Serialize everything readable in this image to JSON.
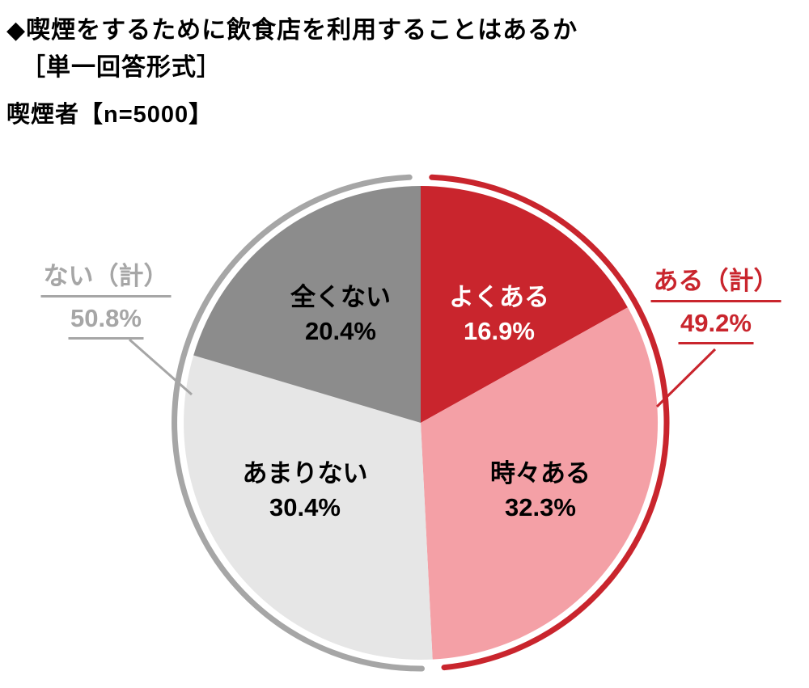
{
  "header": {
    "title": "◆喫煙をするために飲食店を利用することはあるか",
    "format_note": "［単一回答形式］",
    "sample": "喫煙者【n=5000】"
  },
  "chart_data": {
    "type": "pie",
    "title": "喫煙をするために飲食店を利用することはあるか（単一回答形式）",
    "sample_size": 5000,
    "sample_label": "喫煙者【n=5000】",
    "unit": "%",
    "start_angle_deg": 0,
    "direction": "clockwise",
    "segments": [
      {
        "label": "よくある",
        "value": 16.9,
        "value_label": "16.9%",
        "color": "#C9252D",
        "text_color": "#FFFFFF"
      },
      {
        "label": "時々ある",
        "value": 32.3,
        "value_label": "32.3%",
        "color": "#F4A0A6",
        "text_color": "#000000"
      },
      {
        "label": "あまりない",
        "value": 30.4,
        "value_label": "30.4%",
        "color": "#E6E6E6",
        "text_color": "#000000"
      },
      {
        "label": "全くない",
        "value": 20.4,
        "value_label": "20.4%",
        "color": "#8C8C8C",
        "text_color": "#000000"
      }
    ],
    "groups": [
      {
        "label": "ある（計）",
        "value": 49.2,
        "value_label": "49.2%",
        "color": "#C9252D",
        "side": "right"
      },
      {
        "label": "ない（計）",
        "value": 50.8,
        "value_label": "50.8%",
        "color": "#A6A6A6",
        "side": "left"
      }
    ]
  }
}
